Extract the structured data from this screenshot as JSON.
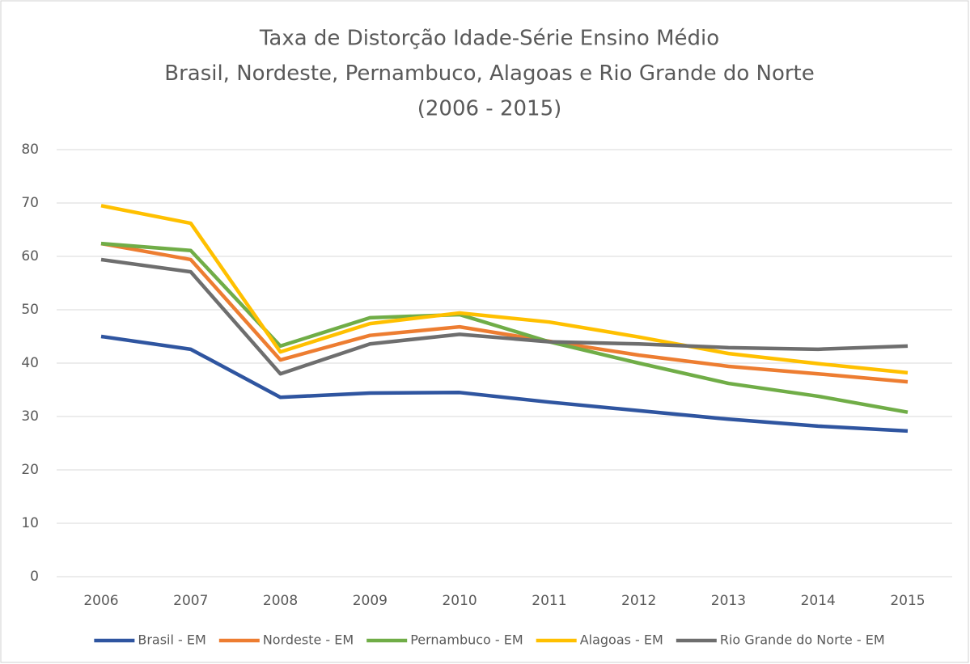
{
  "chart_data": {
    "type": "line",
    "title_lines": [
      "Taxa de Distorção Idade-Série Ensino Médio",
      "Brasil, Nordeste, Pernambuco, Alagoas e Rio Grande do Norte",
      "(2006 - 2015)"
    ],
    "categories": [
      "2006",
      "2007",
      "2008",
      "2009",
      "2010",
      "2011",
      "2012",
      "2013",
      "2014",
      "2015"
    ],
    "series": [
      {
        "name": "Brasil - EM",
        "color": "#2f55a0",
        "values": [
          45.0,
          42.6,
          33.6,
          34.4,
          34.5,
          32.7,
          31.1,
          29.5,
          28.2,
          27.3
        ]
      },
      {
        "name": "Nordeste - EM",
        "color": "#ed7d31",
        "values": [
          62.4,
          59.4,
          40.6,
          45.2,
          46.8,
          44.1,
          41.5,
          39.4,
          38.0,
          36.5
        ]
      },
      {
        "name": "Pernambuco - EM",
        "color": "#70ad47",
        "values": [
          62.4,
          61.1,
          43.2,
          48.5,
          49.1,
          44.0,
          40.0,
          36.2,
          33.8,
          30.8
        ]
      },
      {
        "name": "Alagoas - EM",
        "color": "#ffc000",
        "values": [
          69.5,
          66.2,
          42.1,
          47.4,
          49.4,
          47.7,
          44.9,
          41.8,
          39.9,
          38.2
        ]
      },
      {
        "name": "Rio Grande do Norte - EM",
        "color": "#6e6e6e",
        "values": [
          59.4,
          57.1,
          38.0,
          43.6,
          45.4,
          44.0,
          43.6,
          42.9,
          42.6,
          43.2
        ]
      }
    ],
    "ylim": [
      0,
      80
    ],
    "yticks": [
      0,
      10,
      20,
      30,
      40,
      50,
      60,
      70,
      80
    ],
    "grid": true,
    "legend": "bottom"
  }
}
